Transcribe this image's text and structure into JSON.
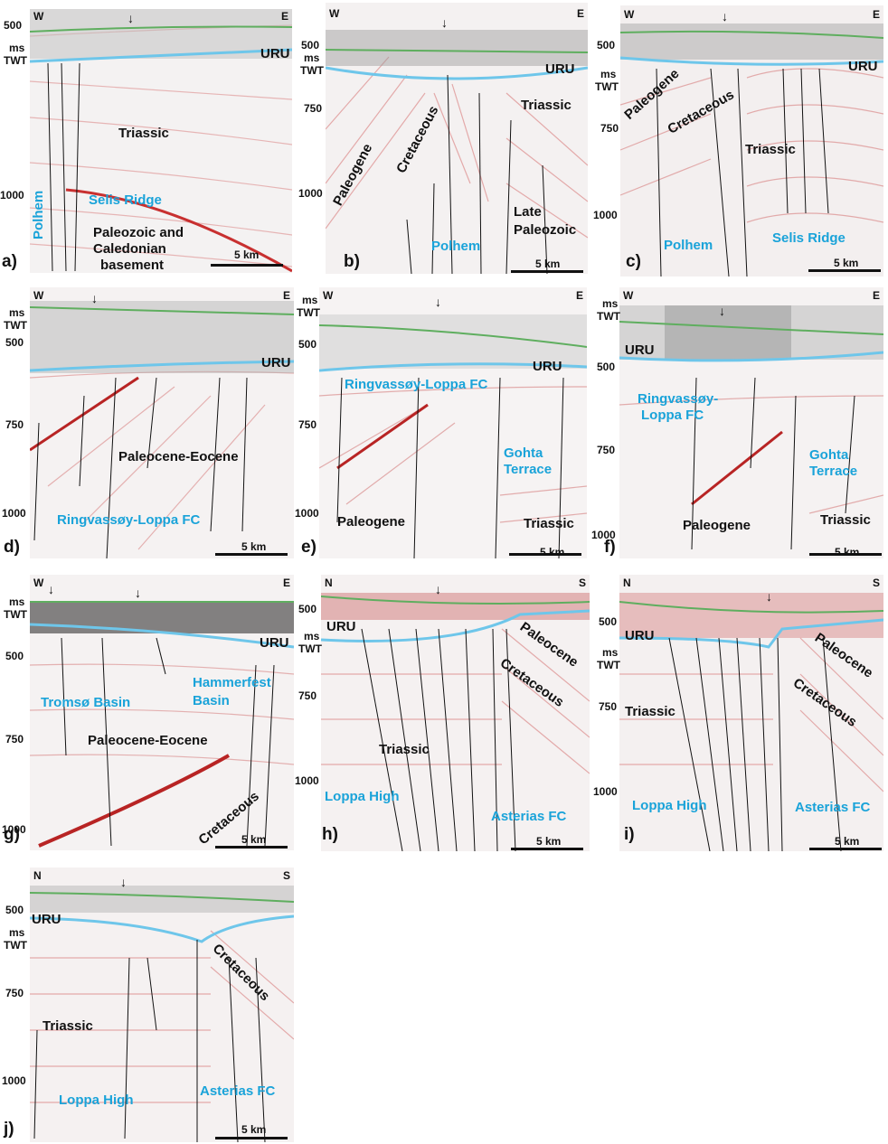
{
  "panels": [
    {
      "id": "a",
      "label": "a)",
      "west": "W",
      "east": "E",
      "ticks": {
        "t500": "500",
        "ms": "ms",
        "twt": "TWT",
        "t750": "",
        "t1000": "1000"
      },
      "uru": "URU",
      "geo_black": [
        "Triassic",
        "Paleozoic and",
        "Caledonian",
        "basement"
      ],
      "geo_blue": [
        "Selis Ridge",
        "Polhem"
      ],
      "scale": "5 km"
    },
    {
      "id": "b",
      "label": "b)",
      "west": "W",
      "east": "E",
      "ticks": {
        "t500": "500",
        "ms": "ms",
        "twt": "TWT",
        "t750": "750",
        "t1000": "1000"
      },
      "uru": "URU",
      "geo_black": [
        "Triassic",
        "Paleogene",
        "Cretaceous",
        "Late",
        "Paleozoic"
      ],
      "geo_blue": [
        "Polhem"
      ],
      "scale": "5 km"
    },
    {
      "id": "c",
      "label": "c)",
      "west": "W",
      "east": "E",
      "ticks": {
        "t500": "500",
        "ms": "ms",
        "twt": "TWT",
        "t750": "750",
        "t1000": "1000"
      },
      "uru": "URU",
      "geo_black": [
        "Paleogene",
        "Cretaceous",
        "Triassic"
      ],
      "geo_blue": [
        "Polhem",
        "Selis Ridge"
      ],
      "scale": "5 km"
    },
    {
      "id": "d",
      "label": "d)",
      "west": "W",
      "east": "E",
      "ticks": {
        "ms": "ms",
        "twt": "TWT",
        "t500": "500",
        "t750": "750",
        "t1000": "1000"
      },
      "uru": "URU",
      "geo_black": [
        "Paleocene-Eocene"
      ],
      "geo_blue": [
        "Ringvassøy-Loppa FC"
      ],
      "scale": "5 km"
    },
    {
      "id": "e",
      "label": "e)",
      "west": "W",
      "east": "E",
      "ticks": {
        "ms": "ms",
        "twt": "TWT",
        "t500": "500",
        "t750": "750",
        "t1000": "1000"
      },
      "uru": "URU",
      "geo_black": [
        "Paleogene",
        "Triassic"
      ],
      "geo_blue": [
        "Ringvassøy-Loppa FC",
        "Gohta",
        "Terrace"
      ],
      "scale": "5 km"
    },
    {
      "id": "f",
      "label": "f)",
      "west": "W",
      "east": "E",
      "ticks": {
        "ms": "ms",
        "twt": "TWT",
        "t500": "500",
        "t750": "750",
        "t1000": "1000"
      },
      "uru": "URU",
      "geo_black": [
        "Paleogene",
        "Triassic"
      ],
      "geo_blue": [
        "Ringvassøy-",
        "Loppa FC",
        "Gohta",
        "Terrace"
      ],
      "scale": "5 km"
    },
    {
      "id": "g",
      "label": "g)",
      "west": "W",
      "east": "E",
      "ticks": {
        "ms": "ms",
        "twt": "TWT",
        "t500": "500",
        "t750": "750",
        "t1000": "1000"
      },
      "uru": "URU",
      "geo_black": [
        "Paleocene-Eocene",
        "Cretaceous"
      ],
      "geo_blue": [
        "Tromsø Basin",
        "Hammerfest",
        "Basin"
      ],
      "scale": "5 km"
    },
    {
      "id": "h",
      "label": "h)",
      "west": "N",
      "east": "S",
      "ticks": {
        "t500": "500",
        "ms": "ms",
        "twt": "TWT",
        "t750": "750",
        "t1000": "1000"
      },
      "uru": "URU",
      "geo_black": [
        "Paleocene",
        "Cretaceous",
        "Triassic"
      ],
      "geo_blue": [
        "Loppa High",
        "Asterias FC"
      ],
      "scale": "5 km"
    },
    {
      "id": "i",
      "label": "i)",
      "west": "N",
      "east": "S",
      "ticks": {
        "t500": "500",
        "ms": "ms",
        "twt": "TWT",
        "t750": "750",
        "t1000": "1000"
      },
      "uru": "URU",
      "geo_black": [
        "Paleocene",
        "Cretaceous",
        "Triassic"
      ],
      "geo_blue": [
        "Loppa High",
        "Asterias FC"
      ],
      "scale": "5 km"
    },
    {
      "id": "j",
      "label": "j)",
      "west": "N",
      "east": "S",
      "ticks": {
        "t500": "500",
        "ms": "ms",
        "twt": "TWT",
        "t750": "750",
        "t1000": "1000"
      },
      "uru": "URU",
      "geo_black": [
        "Cretaceous",
        "Triassic"
      ],
      "geo_blue": [
        "Loppa High",
        "Asterias FC"
      ],
      "scale": "5 km"
    }
  ],
  "colors": {
    "uru_line": "#6ec6ea",
    "seabed_line": "#5fae5f",
    "reflector_red": "#d83a3a",
    "reflector_black": "#222222",
    "blue_label": "#1aa3d9"
  }
}
